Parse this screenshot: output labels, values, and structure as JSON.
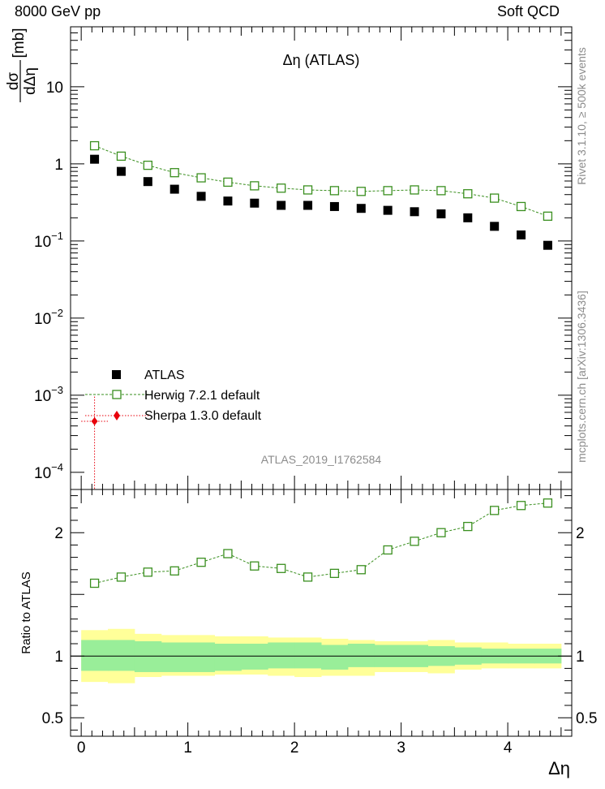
{
  "header": {
    "left": "8000 GeV pp",
    "right": "Soft QCD"
  },
  "side_labels": {
    "rivet": "Rivet 3.1.10, ≥ 500k events",
    "mcplots": "mcplots.cern.ch [arXiv:1306.3436]"
  },
  "chart_data": [
    {
      "type": "scatter",
      "panel": "main",
      "title": "Δη (ATLAS)",
      "ylabel_num": "dσ",
      "ylabel_den": "dΔη",
      "ylabel_unit": "[mb]",
      "xlabel": "Δη",
      "yscale": "log",
      "xlim": [
        -0.1,
        4.6
      ],
      "ylim": [
        6e-05,
        60
      ],
      "ytick_labels": [
        {
          "value": 10,
          "mant": "10",
          "exp": ""
        },
        {
          "value": 1,
          "mant": "1",
          "exp": ""
        },
        {
          "value": 0.1,
          "mant": "10",
          "exp": "−1"
        },
        {
          "value": 0.01,
          "mant": "10",
          "exp": "−2"
        },
        {
          "value": 0.001,
          "mant": "10",
          "exp": "−3"
        },
        {
          "value": 0.0001,
          "mant": "10",
          "exp": "−4"
        }
      ],
      "x": [
        0.125,
        0.375,
        0.625,
        0.875,
        1.125,
        1.375,
        1.625,
        1.875,
        2.125,
        2.375,
        2.625,
        2.875,
        3.125,
        3.375,
        3.625,
        3.875,
        4.125,
        4.375
      ],
      "series": [
        {
          "name": "ATLAS",
          "marker": "filled-square",
          "color": "#000000",
          "values": [
            1.15,
            0.8,
            0.59,
            0.47,
            0.38,
            0.33,
            0.31,
            0.29,
            0.29,
            0.28,
            0.265,
            0.25,
            0.24,
            0.225,
            0.2,
            0.155,
            0.12,
            0.088
          ]
        },
        {
          "name": "Herwig 7.2.1 default",
          "marker": "open-square",
          "color": "#3a8f1f",
          "line": "dashed",
          "values": [
            1.72,
            1.26,
            0.96,
            0.77,
            0.66,
            0.58,
            0.52,
            0.485,
            0.46,
            0.45,
            0.44,
            0.45,
            0.46,
            0.45,
            0.41,
            0.36,
            0.28,
            0.21
          ]
        },
        {
          "name": "Sherpa 1.3.0 default",
          "marker": "filled-diamond",
          "color": "#e8000b",
          "line": "dotted",
          "points": [
            {
              "x": 0.125,
              "y": 0.00046,
              "xerr": 0.125,
              "yerr_high": 0.00096
            }
          ]
        }
      ],
      "watermark": "ATLAS_2019_I1762584"
    },
    {
      "type": "line",
      "panel": "ratio",
      "ylabel": "Ratio to ATLAS",
      "xlabel": "Δη",
      "ylim": [
        0.35,
        2.35
      ],
      "ytick_labels": [
        {
          "value": 2,
          "text": "2"
        },
        {
          "value": 1,
          "text": "1"
        },
        {
          "value": 0.5,
          "text": "0.5"
        }
      ],
      "xtick_labels": [
        {
          "value": 0,
          "text": "0"
        },
        {
          "value": 1,
          "text": "1"
        },
        {
          "value": 2,
          "text": "2"
        },
        {
          "value": 3,
          "text": "3"
        },
        {
          "value": 4,
          "text": "4"
        }
      ],
      "x": [
        0.125,
        0.375,
        0.625,
        0.875,
        1.125,
        1.375,
        1.625,
        1.875,
        2.125,
        2.375,
        2.625,
        2.875,
        3.125,
        3.375,
        3.625,
        3.875,
        4.125,
        4.375
      ],
      "series": [
        {
          "name": "Herwig 7.2.1 default",
          "color": "#3a8f1f",
          "values": [
            1.59,
            1.64,
            1.68,
            1.69,
            1.76,
            1.83,
            1.73,
            1.71,
            1.64,
            1.67,
            1.7,
            1.86,
            1.93,
            2.0,
            2.05,
            2.18,
            2.22,
            2.24
          ]
        }
      ],
      "bands": {
        "stat_color": "#99ee99",
        "syst_color": "#ffff99",
        "edges": [
          0,
          0.25,
          0.5,
          0.75,
          1,
          1.25,
          1.5,
          1.75,
          2,
          2.25,
          2.5,
          2.75,
          3,
          3.25,
          3.5,
          3.75,
          4,
          4.25,
          4.5
        ],
        "inner_low": [
          0.88,
          0.88,
          0.87,
          0.87,
          0.87,
          0.88,
          0.89,
          0.9,
          0.9,
          0.89,
          0.91,
          0.91,
          0.91,
          0.92,
          0.93,
          0.94,
          0.94,
          0.94
        ],
        "inner_high": [
          1.13,
          1.13,
          1.12,
          1.11,
          1.11,
          1.1,
          1.1,
          1.11,
          1.11,
          1.09,
          1.1,
          1.09,
          1.09,
          1.08,
          1.07,
          1.06,
          1.06,
          1.06
        ],
        "outer_low": [
          0.79,
          0.78,
          0.83,
          0.84,
          0.84,
          0.85,
          0.85,
          0.84,
          0.83,
          0.84,
          0.84,
          0.87,
          0.87,
          0.86,
          0.89,
          0.9,
          0.9,
          0.9
        ],
        "outer_high": [
          1.21,
          1.22,
          1.18,
          1.17,
          1.17,
          1.16,
          1.16,
          1.15,
          1.15,
          1.14,
          1.13,
          1.12,
          1.12,
          1.13,
          1.11,
          1.11,
          1.1,
          1.1
        ]
      }
    }
  ]
}
